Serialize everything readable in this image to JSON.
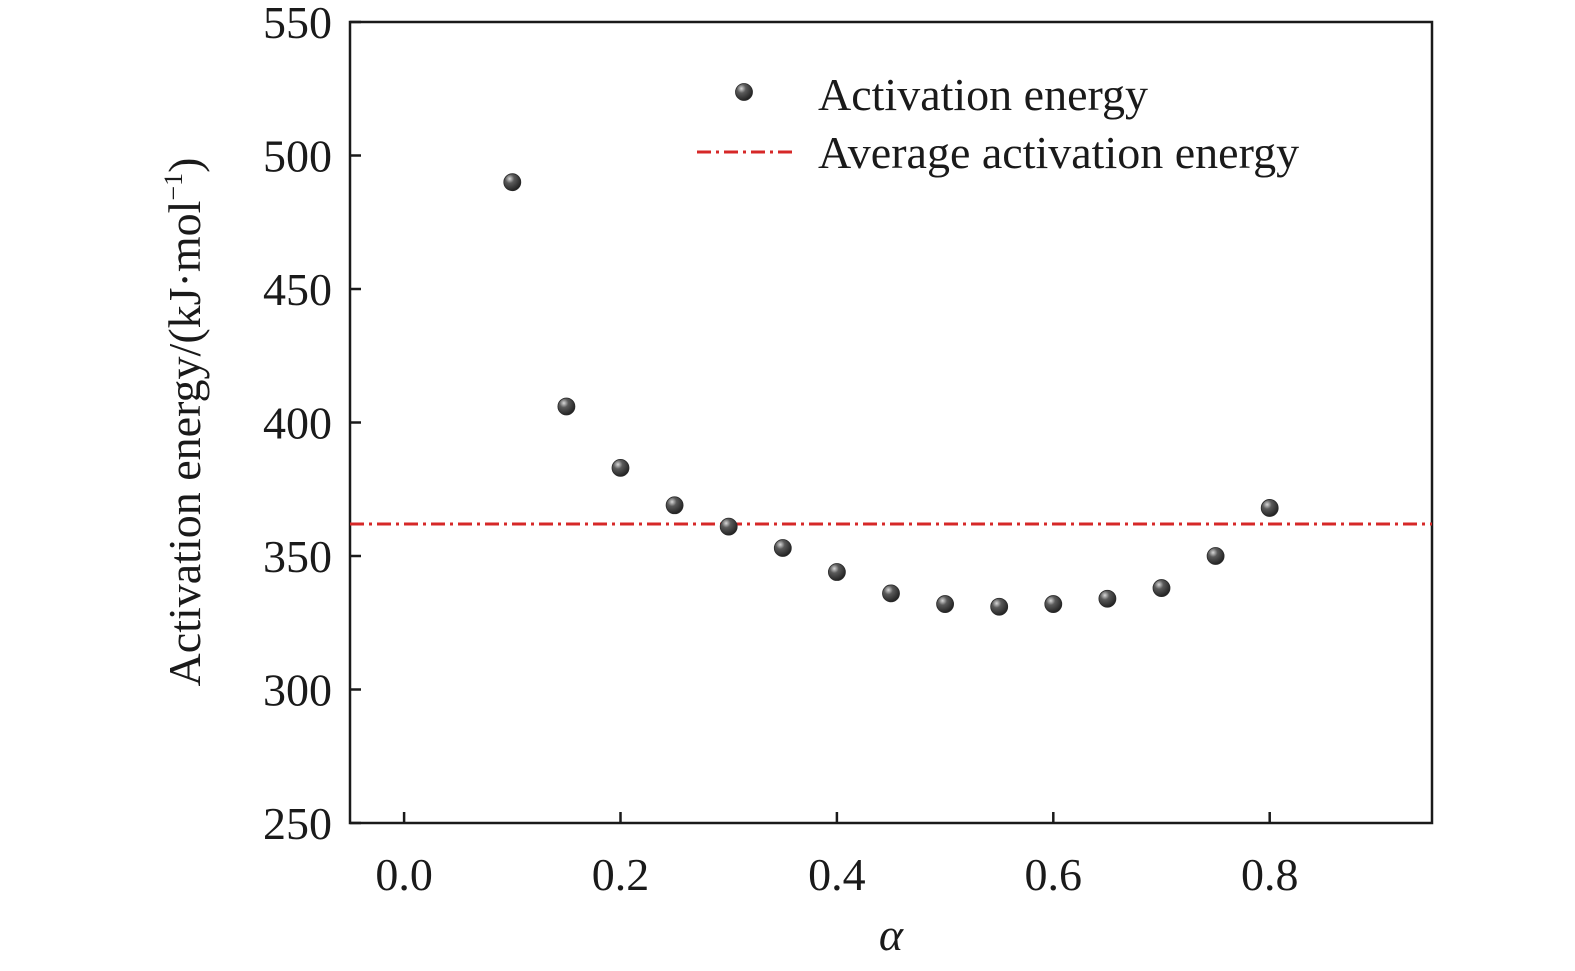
{
  "chart_data": {
    "type": "scatter",
    "xlabel": "α",
    "ylabel": "Activation energy/(kJ·mol",
    "ylabel_sup": "−1",
    "ylabel_close": ")",
    "xlim": [
      -0.05,
      0.95
    ],
    "ylim": [
      250,
      550
    ],
    "xticks": [
      0.0,
      0.2,
      0.4,
      0.6,
      0.8
    ],
    "xtick_labels": [
      "0.0",
      "0.2",
      "0.4",
      "0.6",
      "0.8"
    ],
    "yticks": [
      250,
      300,
      350,
      400,
      450,
      500,
      550
    ],
    "ytick_labels": [
      "250",
      "300",
      "350",
      "400",
      "450",
      "500",
      "550"
    ],
    "grid": false,
    "legend_position": "top-right",
    "series": [
      {
        "name": "Activation energy",
        "kind": "points",
        "color": "#3a3a3a",
        "x": [
          0.1,
          0.15,
          0.2,
          0.25,
          0.3,
          0.35,
          0.4,
          0.45,
          0.5,
          0.55,
          0.6,
          0.65,
          0.7,
          0.75,
          0.8
        ],
        "y": [
          490,
          406,
          383,
          369,
          361,
          353,
          344,
          336,
          332,
          331,
          332,
          334,
          338,
          350,
          368
        ]
      },
      {
        "name": "Average activation energy",
        "kind": "hline",
        "color": "#d62828",
        "y": 362
      }
    ]
  }
}
